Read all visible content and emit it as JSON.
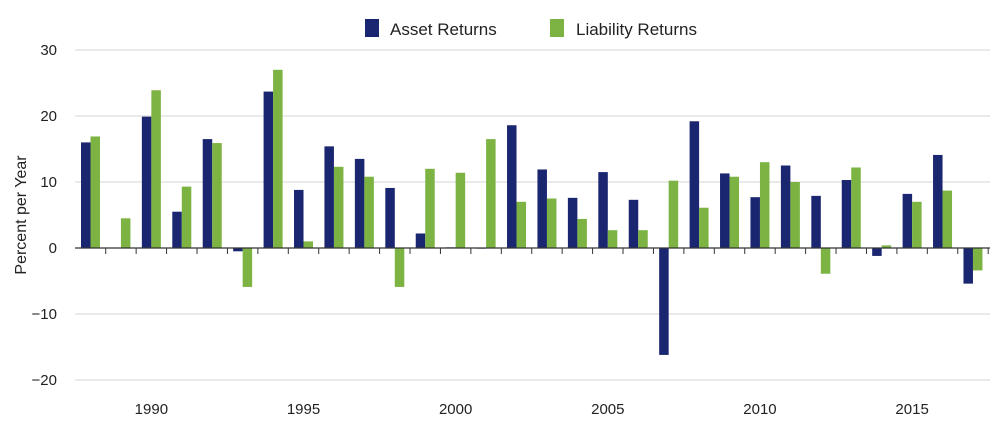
{
  "chart_data": {
    "type": "bar",
    "title": "",
    "xlabel": "",
    "ylabel": "Percent per Year",
    "ylim": [
      -20,
      30
    ],
    "yticks": [
      30,
      20,
      10,
      0,
      -10,
      -20
    ],
    "ytick_labels": [
      "30",
      "20",
      "10",
      "0",
      "−10",
      "−20"
    ],
    "x_tick_labels": [
      {
        "year": 1990,
        "label": "1990"
      },
      {
        "year": 1995,
        "label": "1995"
      },
      {
        "year": 2000,
        "label": "2000"
      },
      {
        "year": 2005,
        "label": "2005"
      },
      {
        "year": 2010,
        "label": "2010"
      },
      {
        "year": 2015,
        "label": "2015"
      }
    ],
    "grid": "horizontal",
    "legend_position": "top-center",
    "categories": [
      1988,
      1989,
      1990,
      1991,
      1992,
      1993,
      1994,
      1995,
      1996,
      1997,
      1998,
      1999,
      2000,
      2001,
      2002,
      2003,
      2004,
      2005,
      2006,
      2007,
      2008,
      2009,
      2010,
      2011,
      2012,
      2013,
      2014,
      2015,
      2016,
      2017,
      2018
    ],
    "series": [
      {
        "name": "Asset Returns",
        "color": "#1b2670",
        "values": [
          16.0,
          0.0,
          19.9,
          5.5,
          16.5,
          -0.5,
          23.7,
          8.8,
          15.4,
          13.5,
          9.1,
          2.2,
          0.1,
          -0.1,
          18.6,
          11.9,
          7.6,
          11.5,
          7.3,
          -16.2,
          19.2,
          11.3,
          7.7,
          12.5,
          7.9,
          10.3,
          -1.2,
          8.2,
          14.1,
          -5.4,
          0.0
        ]
      },
      {
        "name": "Liability Returns",
        "color": "#7cb342",
        "values": [
          16.9,
          4.5,
          23.9,
          9.3,
          15.9,
          -5.9,
          27.0,
          1.0,
          12.3,
          10.8,
          -5.9,
          12.0,
          11.4,
          16.5,
          7.0,
          7.5,
          4.4,
          2.7,
          2.7,
          10.2,
          6.1,
          10.8,
          13.0,
          10.0,
          -3.9,
          12.2,
          0.4,
          7.0,
          8.7,
          -3.4,
          0.0
        ]
      }
    ]
  }
}
